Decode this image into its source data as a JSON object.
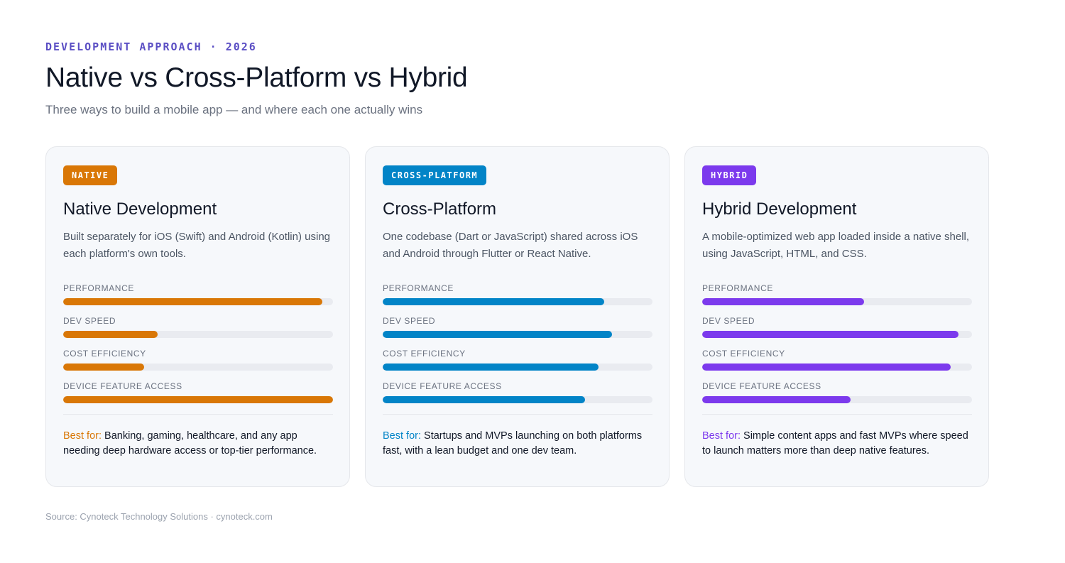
{
  "header": {
    "eyebrow": "DEVELOPMENT APPROACH · 2026",
    "title": "Native vs Cross-Platform vs Hybrid",
    "subtitle": "Three ways to build a mobile app — and where each one actually wins"
  },
  "cards": [
    {
      "badge": "NATIVE",
      "accent": "#d97706",
      "title": "Native Development",
      "description": "Built separately for iOS (Swift) and Android (Kotlin) using each platform's own tools.",
      "metrics": [
        {
          "label": "PERFORMANCE",
          "value": 0.96
        },
        {
          "label": "DEV SPEED",
          "value": 0.35
        },
        {
          "label": "COST EFFICIENCY",
          "value": 0.3
        },
        {
          "label": "DEVICE FEATURE ACCESS",
          "value": 1.0
        }
      ],
      "best_prefix": "Best for:",
      "best_text": " Banking, gaming, healthcare, and any app needing deep hardware access or top-tier performance."
    },
    {
      "badge": "CROSS-PLATFORM",
      "accent": "#0284c7",
      "title": "Cross-Platform",
      "description": "One codebase (Dart or JavaScript) shared across iOS and Android through Flutter or React Native.",
      "metrics": [
        {
          "label": "PERFORMANCE",
          "value": 0.82
        },
        {
          "label": "DEV SPEED",
          "value": 0.85
        },
        {
          "label": "COST EFFICIENCY",
          "value": 0.8
        },
        {
          "label": "DEVICE FEATURE ACCESS",
          "value": 0.75
        }
      ],
      "best_prefix": "Best for:",
      "best_text": " Startups and MVPs launching on both platforms fast, with a lean budget and one dev team."
    },
    {
      "badge": "HYBRID",
      "accent": "#7c3aed",
      "title": "Hybrid Development",
      "description": "A mobile-optimized web app loaded inside a native shell, using JavaScript, HTML, and CSS.",
      "metrics": [
        {
          "label": "PERFORMANCE",
          "value": 0.6
        },
        {
          "label": "DEV SPEED",
          "value": 0.95
        },
        {
          "label": "COST EFFICIENCY",
          "value": 0.92
        },
        {
          "label": "DEVICE FEATURE ACCESS",
          "value": 0.55
        }
      ],
      "best_prefix": "Best for:",
      "best_text": " Simple content apps and fast MVPs where speed to launch matters more than deep native features."
    }
  ],
  "footer": {
    "source": "Source: Cynoteck Technology Solutions · cynoteck.com"
  }
}
